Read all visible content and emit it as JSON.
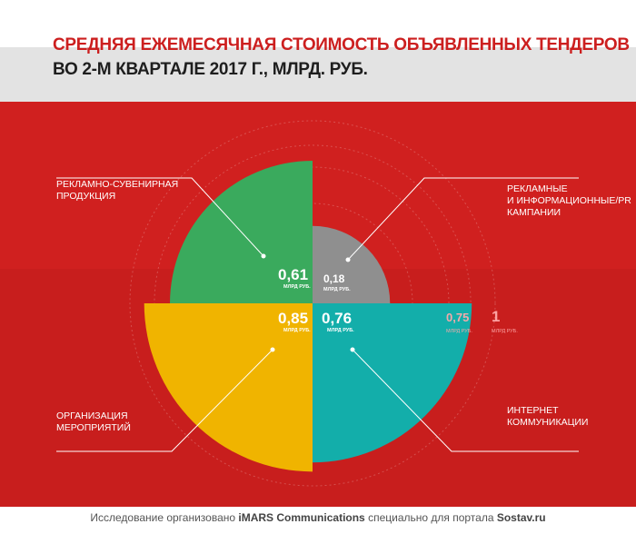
{
  "title": {
    "line1": "СРЕДНЯЯ ЕЖЕМЕСЯЧНАЯ СТОИМОСТЬ ОБЪЯВЛЕННЫХ ТЕНДЕРОВ",
    "line2": "ВО 2-М КВАРТАЛЕ 2017 Г., МЛРД. РУБ."
  },
  "colors": {
    "background": "#d0201f",
    "green": "#3aaa5d",
    "yellow": "#f0b400",
    "teal": "#13aeaa",
    "grey": "#8f8f8f"
  },
  "chart_data": {
    "type": "polar-area",
    "unit": "млрд руб.",
    "scale_max": 1,
    "slices": [
      {
        "label_lines": [
          "РЕКЛАМНО-СУВЕНИРНАЯ",
          "ПРОДУКЦИЯ"
        ],
        "value": 0.61,
        "value_text": "0,61",
        "unit_text": "МЛРД РУБ.",
        "color": "#3aaa5d",
        "quadrant": "top-left"
      },
      {
        "label_lines": [
          "РЕКЛАМНЫЕ",
          "И ИНФОРМАЦИОННЫЕ/PR",
          "КАМПАНИИ"
        ],
        "value": 0.18,
        "value_text": "0,18",
        "unit_text": "МЛРД РУБ.",
        "color": "#8f8f8f",
        "quadrant": "top-right"
      },
      {
        "label_lines": [
          "ИНТЕРНЕТ",
          "КОММУНИКАЦИИ"
        ],
        "value": 0.76,
        "value_text": "0,76",
        "unit_text": "МЛРД РУБ.",
        "color": "#13aeaa",
        "quadrant": "bottom-right"
      },
      {
        "label_lines": [
          "ОРГАНИЗАЦИЯ",
          "МЕРОПРИЯТИЙ"
        ],
        "value": 0.85,
        "value_text": "0,85",
        "unit_text": "МЛРД РУБ.",
        "color": "#f0b400",
        "quadrant": "bottom-left"
      }
    ],
    "scale_marks": [
      {
        "value": 0.75,
        "text": "0,75",
        "unit_text": "МЛРД РУБ."
      },
      {
        "value": 1,
        "text": "1",
        "unit_text": "МЛРД РУБ."
      }
    ]
  },
  "footer": {
    "prefix": "Исследование организовано ",
    "org": "iMARS Communications",
    "middle": " специально для портала ",
    "portal": "Sostav.ru"
  }
}
